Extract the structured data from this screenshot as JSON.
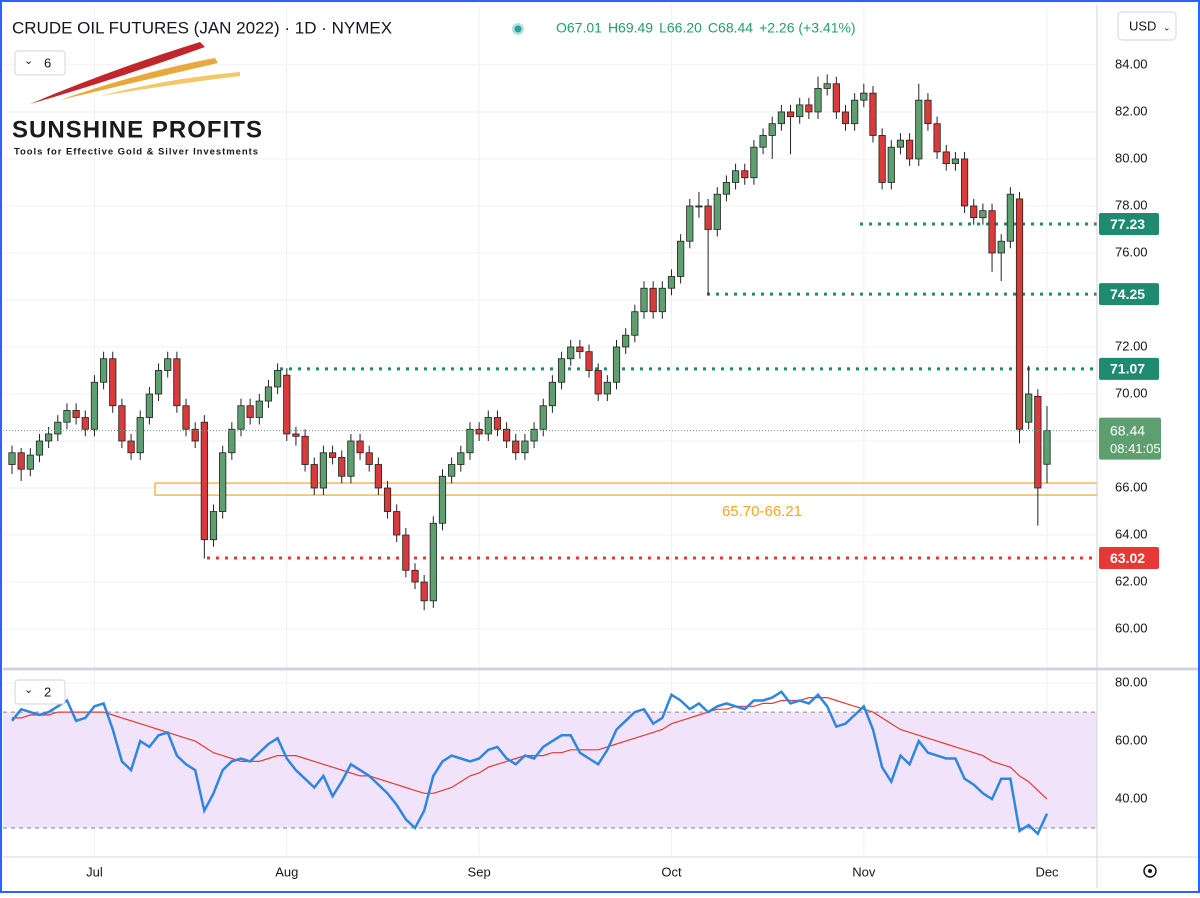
{
  "header": {
    "indicator_count": "6",
    "rsi_indicator_count": "2",
    "currency": "USD",
    "logo_title": "SUNSHINE PROFITS",
    "logo_tagline": "Tools for Effective Gold & Silver Investments"
  },
  "chart_data": [
    {
      "type": "candlestick",
      "title": "CRUDE OIL FUTURES (JAN 2022) · 1D · NYMEX",
      "legend_values": [
        "O67.01",
        "H69.49",
        "L66.20",
        "C68.44",
        "+2.26 (+3.41%)"
      ],
      "up_color": "#5e9f70",
      "down_color": "#d93a3a",
      "categories": [
        null,
        null,
        null,
        null,
        null,
        null,
        null,
        null,
        null,
        "Jul",
        null,
        null,
        null,
        null,
        null,
        null,
        null,
        null,
        null,
        null,
        null,
        null,
        null,
        null,
        null,
        null,
        null,
        null,
        null,
        null,
        "Aug",
        null,
        null,
        null,
        null,
        null,
        null,
        null,
        null,
        null,
        null,
        null,
        null,
        null,
        null,
        null,
        null,
        null,
        null,
        null,
        null,
        "Sep",
        null,
        null,
        null,
        null,
        null,
        null,
        null,
        null,
        null,
        null,
        null,
        null,
        null,
        null,
        null,
        null,
        null,
        null,
        null,
        null,
        "Oct",
        null,
        null,
        null,
        null,
        null,
        null,
        null,
        null,
        null,
        null,
        null,
        null,
        null,
        null,
        null,
        null,
        null,
        null,
        null,
        null,
        "Nov",
        null,
        null,
        null,
        null,
        null,
        null,
        null,
        null,
        null,
        null,
        null,
        null,
        null,
        null,
        null,
        null,
        null,
        null,
        null,
        "Dec"
      ],
      "ohlc": [
        [
          67.0,
          67.8,
          66.6,
          67.5
        ],
        [
          67.5,
          67.7,
          66.3,
          66.8
        ],
        [
          66.8,
          67.7,
          66.5,
          67.4
        ],
        [
          67.4,
          68.3,
          67.1,
          68.0
        ],
        [
          68.0,
          68.6,
          67.7,
          68.3
        ],
        [
          68.3,
          69.1,
          68.0,
          68.8
        ],
        [
          68.8,
          69.6,
          68.5,
          69.3
        ],
        [
          69.3,
          69.6,
          68.7,
          69.0
        ],
        [
          69.0,
          69.3,
          68.2,
          68.5
        ],
        [
          68.5,
          70.8,
          68.2,
          70.5
        ],
        [
          70.5,
          71.8,
          70.2,
          71.5
        ],
        [
          71.5,
          71.8,
          69.2,
          69.5
        ],
        [
          69.5,
          69.8,
          67.7,
          68.0
        ],
        [
          68.0,
          68.3,
          67.2,
          67.5
        ],
        [
          67.5,
          69.3,
          67.2,
          69.0
        ],
        [
          69.0,
          70.3,
          68.7,
          70.0
        ],
        [
          70.0,
          71.3,
          69.7,
          71.0
        ],
        [
          71.0,
          71.8,
          70.7,
          71.5
        ],
        [
          71.5,
          71.8,
          69.2,
          69.5
        ],
        [
          69.5,
          69.8,
          68.2,
          68.5
        ],
        [
          68.5,
          68.8,
          67.7,
          68.0
        ],
        [
          68.8,
          69.1,
          63.0,
          63.8
        ],
        [
          63.8,
          65.3,
          63.5,
          65.0
        ],
        [
          65.0,
          67.8,
          64.7,
          67.5
        ],
        [
          67.5,
          68.8,
          67.2,
          68.5
        ],
        [
          68.5,
          69.8,
          68.2,
          69.5
        ],
        [
          69.5,
          69.8,
          68.7,
          69.0
        ],
        [
          69.0,
          70.0,
          68.7,
          69.7
        ],
        [
          69.7,
          70.6,
          69.4,
          70.3
        ],
        [
          70.3,
          71.3,
          70.0,
          71.0
        ],
        [
          70.8,
          71.1,
          68.0,
          68.3
        ],
        [
          68.3,
          68.6,
          67.8,
          68.2
        ],
        [
          68.2,
          68.5,
          66.7,
          67.0
        ],
        [
          67.0,
          67.3,
          65.7,
          66.0
        ],
        [
          66.0,
          67.8,
          65.7,
          67.5
        ],
        [
          67.5,
          67.8,
          67.0,
          67.3
        ],
        [
          67.3,
          67.6,
          66.2,
          66.5
        ],
        [
          66.5,
          68.3,
          66.2,
          68.0
        ],
        [
          68.0,
          68.3,
          67.2,
          67.5
        ],
        [
          67.5,
          67.8,
          66.7,
          67.0
        ],
        [
          67.0,
          67.3,
          65.7,
          66.0
        ],
        [
          66.0,
          66.3,
          64.7,
          65.0
        ],
        [
          65.0,
          65.3,
          63.7,
          64.0
        ],
        [
          64.0,
          64.3,
          62.2,
          62.5
        ],
        [
          62.5,
          62.8,
          61.7,
          62.0
        ],
        [
          62.0,
          62.3,
          60.8,
          61.2
        ],
        [
          61.2,
          64.8,
          60.9,
          64.5
        ],
        [
          64.5,
          66.8,
          64.2,
          66.5
        ],
        [
          66.5,
          67.3,
          66.2,
          67.0
        ],
        [
          67.0,
          67.8,
          66.7,
          67.5
        ],
        [
          67.5,
          68.8,
          67.2,
          68.5
        ],
        [
          68.5,
          68.8,
          68.0,
          68.3
        ],
        [
          68.3,
          69.3,
          68.0,
          69.0
        ],
        [
          69.0,
          69.3,
          68.2,
          68.5
        ],
        [
          68.5,
          68.8,
          67.7,
          68.0
        ],
        [
          68.0,
          68.3,
          67.2,
          67.5
        ],
        [
          67.5,
          68.3,
          67.2,
          68.0
        ],
        [
          68.0,
          68.8,
          67.7,
          68.5
        ],
        [
          68.5,
          69.8,
          68.2,
          69.5
        ],
        [
          69.5,
          70.8,
          69.2,
          70.5
        ],
        [
          70.5,
          71.8,
          70.2,
          71.5
        ],
        [
          71.5,
          72.3,
          71.2,
          72.0
        ],
        [
          72.0,
          72.3,
          71.5,
          71.8
        ],
        [
          71.8,
          72.1,
          70.7,
          71.0
        ],
        [
          71.0,
          71.3,
          69.7,
          70.0
        ],
        [
          70.0,
          70.8,
          69.7,
          70.5
        ],
        [
          70.5,
          72.3,
          70.2,
          72.0
        ],
        [
          72.0,
          72.8,
          71.7,
          72.5
        ],
        [
          72.5,
          73.8,
          72.2,
          73.5
        ],
        [
          73.5,
          74.8,
          73.2,
          74.5
        ],
        [
          74.5,
          74.8,
          73.2,
          73.5
        ],
        [
          73.5,
          74.8,
          73.2,
          74.5
        ],
        [
          74.5,
          75.3,
          74.2,
          75.0
        ],
        [
          75.0,
          76.8,
          74.7,
          76.5
        ],
        [
          76.5,
          78.3,
          76.2,
          78.0
        ],
        [
          78.0,
          78.6,
          77.5,
          78.0
        ],
        [
          78.0,
          78.3,
          74.2,
          77.0
        ],
        [
          77.0,
          78.8,
          76.7,
          78.5
        ],
        [
          78.5,
          79.3,
          78.2,
          79.0
        ],
        [
          79.0,
          79.8,
          78.7,
          79.5
        ],
        [
          79.5,
          79.8,
          78.9,
          79.2
        ],
        [
          79.2,
          80.8,
          78.9,
          80.5
        ],
        [
          80.5,
          81.3,
          80.2,
          81.0
        ],
        [
          81.0,
          81.8,
          80.0,
          81.5
        ],
        [
          81.5,
          82.3,
          81.2,
          82.0
        ],
        [
          82.0,
          82.3,
          80.2,
          81.8
        ],
        [
          81.8,
          82.6,
          81.5,
          82.3
        ],
        [
          82.3,
          82.6,
          81.7,
          82.0
        ],
        [
          82.0,
          83.5,
          81.7,
          83.0
        ],
        [
          83.0,
          83.6,
          82.7,
          83.2
        ],
        [
          83.2,
          83.5,
          81.7,
          82.0
        ],
        [
          82.0,
          82.3,
          81.2,
          81.5
        ],
        [
          81.5,
          82.8,
          81.2,
          82.5
        ],
        [
          82.5,
          83.2,
          82.2,
          82.8
        ],
        [
          82.8,
          83.1,
          80.7,
          81.0
        ],
        [
          81.0,
          81.3,
          78.7,
          79.0
        ],
        [
          79.0,
          80.8,
          78.7,
          80.5
        ],
        [
          80.5,
          81.1,
          80.2,
          80.8
        ],
        [
          80.8,
          81.1,
          79.7,
          80.0
        ],
        [
          80.0,
          83.2,
          79.7,
          82.5
        ],
        [
          82.5,
          82.8,
          81.2,
          81.5
        ],
        [
          81.5,
          81.8,
          80.0,
          80.3
        ],
        [
          80.3,
          80.6,
          79.5,
          79.8
        ],
        [
          79.8,
          80.3,
          79.5,
          80.0
        ],
        [
          80.0,
          80.3,
          77.7,
          78.0
        ],
        [
          78.0,
          78.3,
          77.2,
          77.5
        ],
        [
          77.5,
          78.1,
          77.2,
          77.8
        ],
        [
          77.8,
          78.1,
          75.2,
          76.0
        ],
        [
          76.0,
          76.8,
          74.8,
          76.5
        ],
        [
          76.5,
          78.8,
          76.2,
          78.5
        ],
        [
          78.3,
          78.6,
          67.9,
          68.5
        ],
        [
          68.8,
          71.2,
          68.5,
          70.0
        ],
        [
          69.9,
          70.2,
          64.4,
          66.0
        ],
        [
          67.01,
          69.49,
          66.2,
          68.44
        ]
      ],
      "ylim": [
        58.47,
        86.55
      ],
      "yticks": [
        {
          "value": 60,
          "label": "60.00"
        },
        {
          "value": 62,
          "label": "62.00"
        },
        {
          "value": 64,
          "label": "64.00"
        },
        {
          "value": 66,
          "label": "66.00"
        },
        {
          "value": 68,
          "label": "68.00"
        },
        {
          "value": 70,
          "label": "70.00"
        },
        {
          "value": 72,
          "label": "72.00"
        },
        {
          "value": 74,
          "label": "74.00"
        },
        {
          "value": 76,
          "label": "76.00"
        },
        {
          "value": 78,
          "label": "78.00"
        },
        {
          "value": 80,
          "label": "80.00"
        },
        {
          "value": 82,
          "label": "82.00"
        },
        {
          "value": 84,
          "label": "84.00"
        }
      ],
      "grid": true,
      "levels": [
        {
          "value": 77.23,
          "color": "#1e8a6f"
        },
        {
          "value": 74.25,
          "color": "#1e8a6f"
        },
        {
          "value": 71.07,
          "color": "#1e8a6f"
        },
        {
          "value": 63.02,
          "color": "#e53935"
        }
      ],
      "zone": {
        "low": 65.7,
        "high": 66.21,
        "label": "65.70-66.21",
        "color": "#f5a623"
      },
      "last_price": {
        "value": 68.44,
        "countdown": "08:41:05",
        "color": "#5e9f70"
      }
    },
    {
      "type": "line",
      "ylim": [
        20.7,
        82.8
      ],
      "yticks": [
        {
          "value": 40,
          "label": "40.00"
        },
        {
          "value": 60,
          "label": "60.00"
        },
        {
          "value": 80,
          "label": "80.00"
        }
      ],
      "bands": [
        30,
        70
      ],
      "band_color": "#f1e4fa",
      "series": [
        {
          "name": "RSI",
          "color": "#2f86e0",
          "values": [
            67,
            71,
            70,
            69,
            70,
            72,
            74,
            67,
            68,
            72,
            73,
            64,
            53,
            50,
            60,
            58,
            62,
            63,
            55,
            52,
            50,
            36,
            42,
            50,
            53,
            54,
            53,
            56,
            59,
            61,
            54,
            50,
            47,
            44,
            48,
            41,
            46,
            52,
            50,
            48,
            45,
            42,
            38,
            33,
            30,
            36,
            48,
            53,
            55,
            54,
            53,
            54,
            57,
            58,
            54,
            52,
            55,
            54,
            58,
            60,
            62,
            62,
            56,
            54,
            52,
            57,
            64,
            67,
            70,
            71,
            66,
            68,
            76,
            74,
            71,
            73,
            70,
            72,
            73,
            72,
            71,
            74,
            74,
            75,
            77,
            73,
            74,
            73,
            76,
            72,
            65,
            66,
            69,
            72,
            64,
            51,
            46,
            55,
            52,
            60,
            56,
            55,
            54,
            54,
            47,
            45,
            42,
            40,
            47,
            47,
            29,
            31,
            28,
            35
          ]
        },
        {
          "name": "RSI MA",
          "color": "#e53935",
          "values": [
            68,
            68,
            69,
            69,
            69,
            70,
            70,
            70,
            70,
            70,
            70,
            69,
            68,
            67,
            66,
            65,
            64,
            63,
            62,
            61,
            60,
            58,
            56,
            55,
            54,
            53,
            53,
            53,
            54,
            55,
            55,
            55,
            54,
            53,
            52,
            51,
            50,
            49,
            48,
            48,
            47,
            46,
            45,
            44,
            43,
            42,
            42,
            43,
            44,
            46,
            48,
            49,
            51,
            52,
            53,
            54,
            55,
            55,
            55,
            56,
            56,
            57,
            57,
            57,
            57,
            58,
            59,
            60,
            61,
            62,
            63,
            64,
            66,
            67,
            68,
            69,
            70,
            71,
            71,
            72,
            72,
            72,
            73,
            73,
            74,
            74,
            74,
            75,
            75,
            75,
            74,
            73,
            72,
            71,
            70,
            68,
            66,
            64,
            63,
            62,
            61,
            60,
            59,
            58,
            57,
            56,
            55,
            53,
            52,
            51,
            48,
            46,
            43,
            40
          ]
        }
      ]
    }
  ]
}
